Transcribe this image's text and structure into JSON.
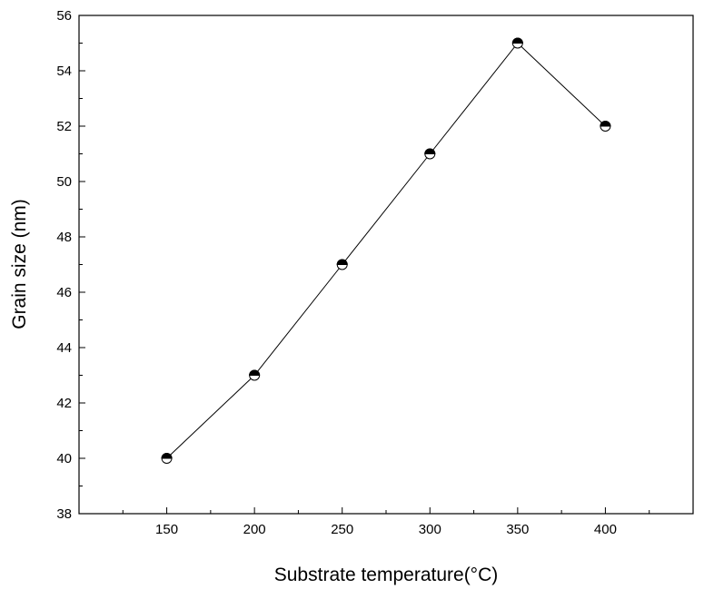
{
  "chart_data": {
    "type": "line",
    "title": "",
    "xlabel": "Substrate temperature(°C)",
    "ylabel": "Grain size (nm)",
    "x": [
      150,
      200,
      250,
      300,
      350,
      400
    ],
    "series": [
      {
        "values": [
          40,
          43,
          47,
          51,
          55,
          52
        ]
      }
    ],
    "xlim": [
      100,
      450
    ],
    "ylim": [
      38,
      56
    ],
    "xticks": [
      150,
      200,
      250,
      300,
      350,
      400
    ],
    "yticks": [
      38,
      40,
      42,
      44,
      46,
      48,
      50,
      52,
      54,
      56
    ],
    "grid": false,
    "marker": "half-filled circle",
    "colors": {
      "line": "#000000",
      "marker_fill": "#000000",
      "marker_bg": "#ffffff"
    }
  }
}
